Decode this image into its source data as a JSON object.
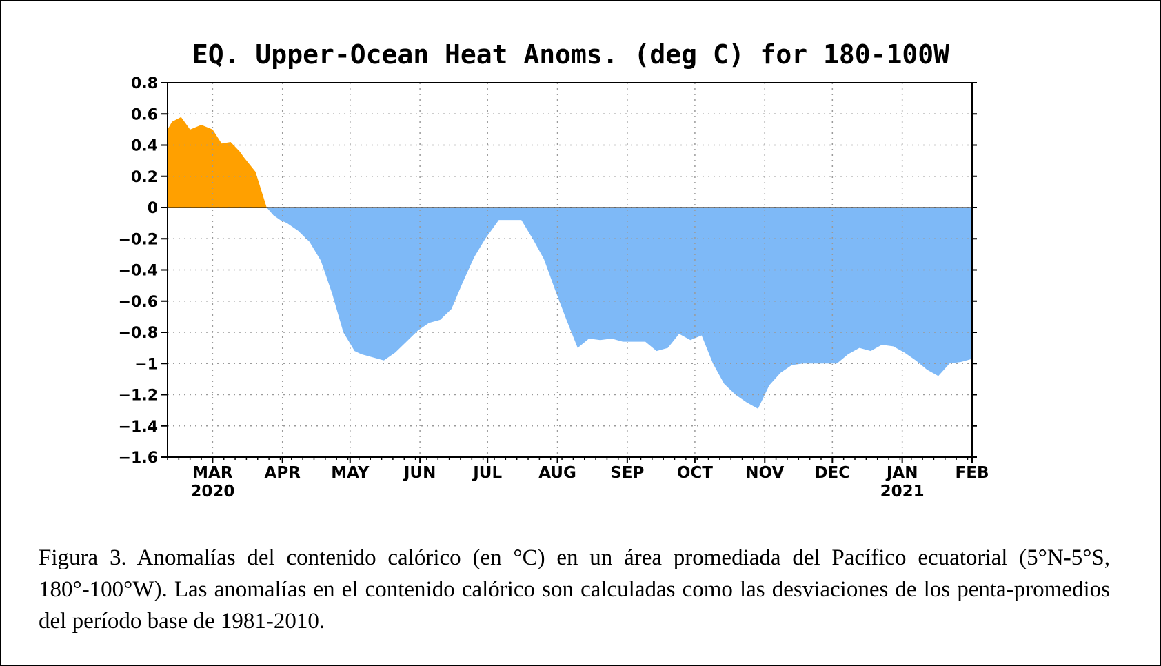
{
  "chart_data": {
    "type": "area",
    "title": "EQ. Upper-Ocean Heat Anoms. (deg C) for 180-100W",
    "xlabel": "",
    "ylabel": "",
    "ylim": [
      -1.6,
      0.8
    ],
    "yticks": [
      0.8,
      0.6,
      0.4,
      0.2,
      0,
      -0.2,
      -0.4,
      -0.6,
      -0.8,
      -1,
      -1.2,
      -1.4,
      -1.6
    ],
    "ytick_labels": [
      "0.8",
      "0.6",
      "0.4",
      "0.2",
      "0",
      "−0.2",
      "−0.4",
      "−0.6",
      "−0.8",
      "−1",
      "−1.2",
      "−1.4",
      "−1.6"
    ],
    "xlim": [
      "2020-02-10",
      "2021-02-01"
    ],
    "xticks": [
      {
        "date": "2020-03-01",
        "label": "MAR",
        "year": "2020"
      },
      {
        "date": "2020-04-01",
        "label": "APR",
        "year": ""
      },
      {
        "date": "2020-05-01",
        "label": "MAY",
        "year": ""
      },
      {
        "date": "2020-06-01",
        "label": "JUN",
        "year": ""
      },
      {
        "date": "2020-07-01",
        "label": "JUL",
        "year": ""
      },
      {
        "date": "2020-08-01",
        "label": "AUG",
        "year": ""
      },
      {
        "date": "2020-09-01",
        "label": "SEP",
        "year": ""
      },
      {
        "date": "2020-10-01",
        "label": "OCT",
        "year": ""
      },
      {
        "date": "2020-11-01",
        "label": "NOV",
        "year": ""
      },
      {
        "date": "2020-12-01",
        "label": "DEC",
        "year": ""
      },
      {
        "date": "2021-01-01",
        "label": "JAN",
        "year": "2021"
      },
      {
        "date": "2021-02-01",
        "label": "FEB",
        "year": ""
      }
    ],
    "grid": true,
    "positive_color": "#ffa000",
    "negative_color": "#7eb9f7",
    "series": [
      {
        "x": [
          "2020-02-10",
          "2020-02-12",
          "2020-02-16",
          "2020-02-20",
          "2020-02-25",
          "2020-03-01",
          "2020-03-05",
          "2020-03-09",
          "2020-03-13",
          "2020-03-15",
          "2020-03-20",
          "2020-03-25",
          "2020-03-28",
          "2020-03-31",
          "2020-04-03",
          "2020-04-08",
          "2020-04-13",
          "2020-04-18",
          "2020-04-23",
          "2020-04-28",
          "2020-05-03",
          "2020-05-06",
          "2020-05-11",
          "2020-05-16",
          "2020-05-21",
          "2020-05-26",
          "2020-05-31",
          "2020-06-05",
          "2020-06-10",
          "2020-06-15",
          "2020-06-20",
          "2020-06-25",
          "2020-06-30",
          "2020-07-06",
          "2020-07-11",
          "2020-07-16",
          "2020-07-21",
          "2020-07-26",
          "2020-07-31",
          "2020-08-05",
          "2020-08-10",
          "2020-08-15",
          "2020-08-20",
          "2020-08-25",
          "2020-08-30",
          "2020-09-04",
          "2020-09-09",
          "2020-09-14",
          "2020-09-19",
          "2020-09-24",
          "2020-09-29",
          "2020-10-04",
          "2020-10-09",
          "2020-10-14",
          "2020-10-19",
          "2020-10-24",
          "2020-10-29",
          "2020-11-03",
          "2020-11-08",
          "2020-11-13",
          "2020-11-18",
          "2020-11-23",
          "2020-11-28",
          "2020-12-03",
          "2020-12-08",
          "2020-12-13",
          "2020-12-18",
          "2020-12-23",
          "2020-12-28",
          "2021-01-02",
          "2021-01-07",
          "2021-01-12",
          "2021-01-17",
          "2021-01-22",
          "2021-01-27",
          "2021-02-01"
        ],
        "y": [
          0.5,
          0.55,
          0.58,
          0.5,
          0.53,
          0.5,
          0.41,
          0.42,
          0.36,
          0.32,
          0.23,
          0.0,
          -0.05,
          -0.08,
          -0.1,
          -0.15,
          -0.22,
          -0.34,
          -0.55,
          -0.8,
          -0.92,
          -0.94,
          -0.96,
          -0.98,
          -0.93,
          -0.86,
          -0.79,
          -0.74,
          -0.72,
          -0.65,
          -0.48,
          -0.32,
          -0.2,
          -0.08,
          -0.08,
          -0.08,
          -0.2,
          -0.33,
          -0.53,
          -0.72,
          -0.9,
          -0.84,
          -0.85,
          -0.84,
          -0.86,
          -0.86,
          -0.86,
          -0.92,
          -0.9,
          -0.81,
          -0.85,
          -0.82,
          -1.0,
          -1.13,
          -1.2,
          -1.25,
          -1.29,
          -1.14,
          -1.06,
          -1.01,
          -1.0,
          -1.0,
          -1.0,
          -1.0,
          -0.94,
          -0.9,
          -0.92,
          -0.88,
          -0.89,
          -0.93,
          -0.98,
          -1.04,
          -1.08,
          -1.0,
          -0.99,
          -0.97
        ]
      }
    ]
  },
  "caption": "Figura 3. Anomalías del contenido calórico (en °C) en un área promediada del Pacífico ecuatorial (5°N-5°S, 180°-100°W). Las anomalías en el contenido calórico son calculadas como las desviaciones de los penta-promedios del período base de 1981-2010."
}
